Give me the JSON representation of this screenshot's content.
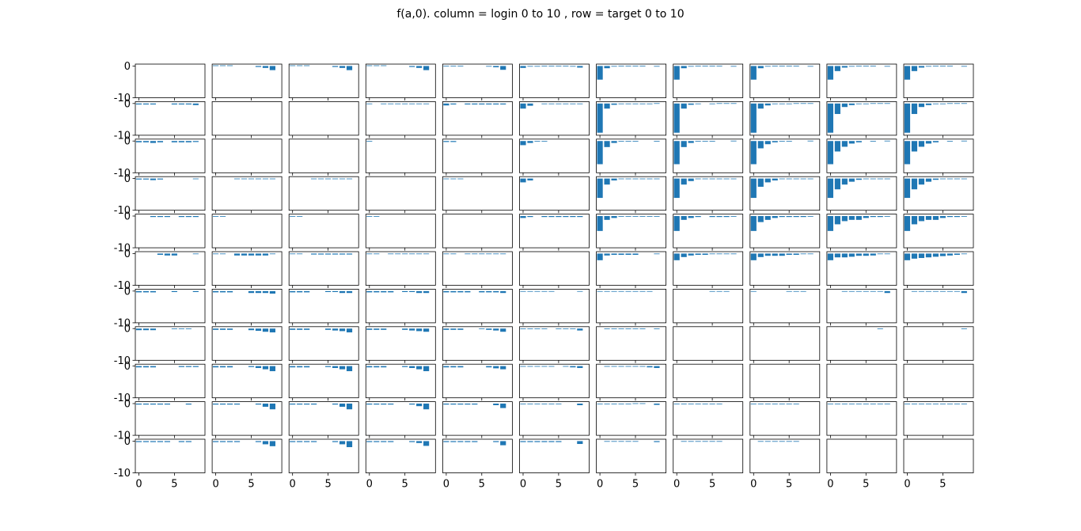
{
  "figure": {
    "title": "f(a,0). column = login 0 to 10 , row = target 0 to 10"
  },
  "chart_data": {
    "type": "bar",
    "layout": "11x11 grid of small bar subplots, shared axes",
    "columns_meaning": "login 0 to 10",
    "rows_meaning": "target 0 to 10",
    "bar_color": "#1f77b4",
    "x_categories": [
      0,
      1,
      2,
      3,
      4,
      5,
      6,
      7,
      8
    ],
    "x_tick_labels": [
      "0",
      "5"
    ],
    "x_ticks": [
      0,
      5
    ],
    "y_tick_labels": [
      "0",
      "-10"
    ],
    "y_ticks": [
      0,
      -10
    ],
    "ylim": [
      -10,
      0.6
    ],
    "grid": false,
    "subplots": [
      [
        [
          0,
          0,
          0,
          0,
          0,
          0,
          0,
          0,
          0
        ],
        [
          0.2,
          0.2,
          0.2,
          0,
          0,
          0,
          -0.3,
          -0.6,
          -1.3
        ],
        [
          0.2,
          0.2,
          0.2,
          0,
          0,
          0,
          -0.3,
          -0.6,
          -1.3
        ],
        [
          0.2,
          0.2,
          0.2,
          0,
          0,
          0,
          -0.3,
          -0.6,
          -1.3
        ],
        [
          0.1,
          0.1,
          0.1,
          0,
          0,
          0,
          -0.2,
          -0.4,
          -1.2
        ],
        [
          -0.6,
          -0.2,
          -0.1,
          0.1,
          0.1,
          0.1,
          0.1,
          -0.1,
          -0.5
        ],
        [
          -4.3,
          -0.7,
          -0.2,
          0.1,
          0.1,
          0.1,
          0.1,
          0,
          -0.2
        ],
        [
          -4.3,
          -0.7,
          -0.2,
          0.1,
          0.1,
          0.1,
          0.1,
          0,
          -0.2
        ],
        [
          -4.3,
          -0.7,
          -0.2,
          0.1,
          0.1,
          0.1,
          0.1,
          0,
          -0.2
        ],
        [
          -4.3,
          -1.6,
          -0.5,
          -0.1,
          0.1,
          0.1,
          0.1,
          0,
          -0.1
        ],
        [
          -4.3,
          -1.6,
          -0.5,
          -0.1,
          0.1,
          0.1,
          0.1,
          0,
          -0.1
        ]
      ],
      [
        [
          -0.3,
          -0.3,
          -0.3,
          0,
          0,
          -0.3,
          -0.3,
          -0.3,
          -0.5
        ],
        [
          0,
          0,
          0,
          0,
          0,
          0,
          0,
          0,
          0
        ],
        [
          0,
          0,
          0,
          0,
          0,
          0,
          0,
          0,
          0
        ],
        [
          -0.2,
          0,
          -0.2,
          -0.2,
          -0.2,
          -0.2,
          -0.2,
          -0.2,
          -0.2
        ],
        [
          -0.6,
          -0.3,
          0,
          -0.3,
          -0.3,
          -0.3,
          -0.3,
          -0.3,
          -0.3
        ],
        [
          -1.6,
          -0.7,
          0,
          -0.2,
          -0.2,
          -0.2,
          -0.2,
          -0.2,
          -0.2
        ],
        [
          -9.2,
          -1.6,
          -0.4,
          -0.2,
          -0.2,
          -0.2,
          -0.2,
          -0.2,
          0.1
        ],
        [
          -9.2,
          -1.6,
          -0.4,
          -0.2,
          0,
          -0.2,
          0.1,
          0.1,
          0.1
        ],
        [
          -9.2,
          -1.6,
          -0.6,
          -0.2,
          -0.2,
          -0.2,
          0.1,
          0.1,
          0.1
        ],
        [
          -9.2,
          -3.3,
          -1.1,
          -0.5,
          -0.2,
          -0.2,
          0.1,
          0.1,
          0.1
        ],
        [
          -9.2,
          -3.3,
          -1.1,
          -0.5,
          -0.2,
          -0.2,
          0.1,
          0.1,
          0.1
        ]
      ],
      [
        [
          -0.4,
          -0.4,
          -0.6,
          -0.4,
          0,
          -0.4,
          -0.4,
          -0.4,
          -0.3
        ],
        [
          0,
          0,
          0,
          0,
          0,
          0,
          0,
          0,
          0
        ],
        [
          0,
          0,
          0,
          0,
          0,
          0,
          0,
          0,
          0
        ],
        [
          -0.2,
          0,
          0,
          0,
          0,
          0,
          0,
          0,
          0
        ],
        [
          -0.3,
          -0.3,
          0,
          0,
          0,
          0,
          0,
          0,
          0
        ],
        [
          -1.3,
          -0.6,
          -0.2,
          -0.2,
          0,
          0,
          0,
          0,
          0
        ],
        [
          -7.3,
          -1.9,
          -0.6,
          -0.2,
          -0.2,
          -0.2,
          0,
          0,
          -0.2
        ],
        [
          -7.3,
          -1.9,
          -0.6,
          -0.2,
          -0.2,
          -0.2,
          0,
          0,
          0.1
        ],
        [
          -7.3,
          -2.3,
          -1,
          -0.4,
          -0.2,
          -0.2,
          0,
          0,
          0.1
        ],
        [
          -7.3,
          -3.3,
          -1.8,
          -0.8,
          -0.4,
          0,
          -0.2,
          0,
          0.1
        ],
        [
          -7.3,
          -3.3,
          -1.8,
          -0.8,
          -0.4,
          0,
          -0.2,
          0,
          0.1
        ]
      ],
      [
        [
          -0.3,
          -0.3,
          -0.5,
          -0.3,
          0,
          0,
          0,
          0,
          -0.2
        ],
        [
          0,
          0,
          0,
          -0.2,
          -0.2,
          -0.2,
          -0.2,
          -0.2,
          -0.2
        ],
        [
          0,
          0,
          0,
          -0.2,
          -0.2,
          -0.2,
          -0.2,
          -0.2,
          -0.2
        ],
        [
          0,
          0,
          0,
          0,
          0,
          0,
          0,
          0,
          0
        ],
        [
          -0.2,
          -0.2,
          -0.2,
          0,
          0,
          0,
          0,
          0,
          0
        ],
        [
          -1.2,
          -0.6,
          0,
          0,
          0,
          0,
          0,
          0,
          0
        ],
        [
          -6.1,
          -1.9,
          -0.6,
          -0.2,
          -0.2,
          -0.2,
          -0.2,
          -0.2,
          -0.2
        ],
        [
          -6.1,
          -1.9,
          -0.8,
          -0.2,
          -0.2,
          -0.2,
          -0.2,
          -0.2,
          -0.2
        ],
        [
          -6.1,
          -2.6,
          -1.2,
          -0.6,
          -0.2,
          -0.2,
          -0.2,
          -0.2,
          -0.2
        ],
        [
          -6.1,
          -3.4,
          -1.9,
          -1,
          -0.4,
          -0.2,
          -0.2,
          -0.2,
          -0.2
        ],
        [
          -6.1,
          -3.4,
          -1.9,
          -1,
          -0.4,
          -0.2,
          -0.2,
          -0.2,
          -0.2
        ]
      ],
      [
        [
          0,
          0,
          -0.3,
          -0.3,
          -0.3,
          0,
          -0.3,
          -0.3,
          -0.3
        ],
        [
          -0.2,
          -0.2,
          0,
          0,
          0,
          0,
          0,
          0,
          0
        ],
        [
          -0.2,
          -0.2,
          0,
          0,
          0,
          0,
          0,
          0,
          0
        ],
        [
          -0.2,
          -0.2,
          0,
          0,
          0,
          0,
          0,
          0,
          0
        ],
        [
          0,
          0,
          0,
          0,
          0,
          0,
          0,
          0,
          0
        ],
        [
          -0.6,
          -0.3,
          0,
          -0.3,
          -0.3,
          -0.3,
          -0.3,
          -0.3,
          -0.3
        ],
        [
          -4.7,
          -1.2,
          -0.6,
          -0.2,
          -0.2,
          -0.2,
          -0.2,
          -0.2,
          -0.2
        ],
        [
          -4.7,
          -1.2,
          -0.6,
          -0.3,
          0,
          -0.3,
          -0.3,
          -0.3,
          -0.2
        ],
        [
          -4.7,
          -1.9,
          -1.2,
          -0.6,
          -0.3,
          -0.3,
          -0.3,
          -0.3,
          -0.2
        ],
        [
          -4.7,
          -2.6,
          -1.6,
          -1.2,
          -1.2,
          -0.6,
          -0.3,
          -0.3,
          -0.2
        ],
        [
          -4.7,
          -2.6,
          -1.6,
          -1.2,
          -1.2,
          -0.6,
          -0.3,
          -0.3,
          -0.2
        ]
      ],
      [
        [
          0,
          0,
          0,
          -0.4,
          -0.6,
          -0.6,
          0,
          0,
          -0.2
        ],
        [
          -0.2,
          -0.2,
          0,
          -0.6,
          -0.6,
          -0.6,
          -0.6,
          -0.6,
          -0.2
        ],
        [
          -0.2,
          -0.2,
          0,
          -0.3,
          -0.3,
          -0.3,
          -0.3,
          -0.3,
          -0.3
        ],
        [
          -0.2,
          -0.2,
          0,
          -0.2,
          -0.2,
          -0.2,
          -0.2,
          -0.2,
          -0.2
        ],
        [
          -0.2,
          -0.2,
          0,
          -0.2,
          -0.2,
          -0.2,
          -0.2,
          -0.2,
          -0.2
        ],
        [
          0,
          0,
          0,
          0,
          0,
          0,
          0,
          0,
          0
        ],
        [
          -2.1,
          -0.6,
          -0.4,
          -0.4,
          -0.4,
          -0.4,
          0,
          0,
          -0.2
        ],
        [
          -2.1,
          -1.1,
          -0.6,
          -0.4,
          -0.4,
          -0.2,
          -0.2,
          -0.2,
          -0.2
        ],
        [
          -2.1,
          -1.1,
          -0.7,
          -0.7,
          -0.7,
          -0.4,
          -0.4,
          -0.2,
          -0.2
        ],
        [
          -2.1,
          -1.2,
          -1.2,
          -1,
          -0.7,
          -0.7,
          -0.6,
          -0.2,
          -0.2
        ],
        [
          -2.1,
          -1.6,
          -1.4,
          -1.2,
          -1.0,
          -0.8,
          -0.6,
          -0.4,
          -0.2
        ]
      ],
      [
        [
          -0.4,
          -0.4,
          -0.4,
          0,
          0,
          -0.3,
          0,
          0,
          -0.3
        ],
        [
          -0.4,
          -0.4,
          -0.4,
          0,
          0,
          -0.6,
          -0.6,
          -0.6,
          -0.8
        ],
        [
          -0.4,
          -0.4,
          -0.4,
          0,
          0,
          -0.3,
          -0.3,
          -0.6,
          -0.6
        ],
        [
          -0.4,
          -0.4,
          -0.4,
          -0.4,
          0,
          -0.3,
          -0.3,
          -0.6,
          -0.6
        ],
        [
          -0.4,
          -0.4,
          -0.4,
          -0.4,
          0,
          -0.4,
          -0.4,
          -0.4,
          -0.6
        ],
        [
          -0.2,
          -0.2,
          -0.2,
          -0.2,
          -0.2,
          0,
          0,
          0,
          -0.2
        ],
        [
          -0.2,
          -0.2,
          -0.2,
          -0.2,
          -0.2,
          -0.2,
          -0.2,
          -0.2,
          0
        ],
        [
          0,
          0,
          0,
          0,
          0,
          -0.2,
          -0.2,
          -0.2,
          0
        ],
        [
          -0.2,
          0,
          0,
          0,
          0,
          -0.2,
          -0.2,
          -0.2,
          0
        ],
        [
          0,
          0,
          -0.2,
          -0.2,
          -0.2,
          -0.2,
          -0.2,
          -0.2,
          -0.6
        ],
        [
          0,
          -0.2,
          -0.2,
          -0.2,
          -0.2,
          -0.2,
          -0.2,
          -0.2,
          -0.6
        ]
      ],
      [
        [
          -0.5,
          -0.5,
          -0.5,
          0,
          0,
          -0.2,
          -0.2,
          -0.2,
          0
        ],
        [
          -0.4,
          -0.4,
          -0.4,
          0,
          0,
          -0.5,
          -0.7,
          -1,
          -1.2
        ],
        [
          -0.4,
          -0.4,
          -0.4,
          0,
          0,
          -0.4,
          -0.6,
          -0.8,
          -1.2
        ],
        [
          -0.4,
          -0.4,
          -0.4,
          0,
          0,
          -0.4,
          -0.6,
          -0.8,
          -1
        ],
        [
          -0.4,
          -0.4,
          -0.4,
          0,
          0,
          -0.2,
          -0.4,
          -0.6,
          -1
        ],
        [
          -0.2,
          -0.2,
          -0.2,
          -0.2,
          0,
          -0.2,
          -0.2,
          -0.2,
          -0.6
        ],
        [
          0,
          -0.2,
          -0.2,
          -0.2,
          -0.2,
          -0.2,
          -0.2,
          0,
          -0.2
        ],
        [
          0,
          0,
          0,
          0,
          0,
          0,
          0,
          0,
          0
        ],
        [
          0,
          0,
          0,
          0,
          0,
          0,
          0,
          0,
          0
        ],
        [
          0,
          0,
          0,
          0,
          0,
          0,
          0,
          -0.2,
          0
        ],
        [
          0,
          0,
          0,
          0,
          0,
          0,
          0,
          0,
          -0.2
        ]
      ],
      [
        [
          -0.4,
          -0.4,
          -0.4,
          0,
          0,
          0,
          -0.3,
          -0.3,
          -0.3
        ],
        [
          -0.4,
          -0.4,
          -0.4,
          0,
          0,
          -0.3,
          -0.6,
          -1,
          -1.6
        ],
        [
          -0.4,
          -0.4,
          -0.4,
          0,
          0,
          -0.3,
          -0.6,
          -1,
          -1.6
        ],
        [
          -0.4,
          -0.4,
          -0.4,
          0,
          0,
          -0.3,
          -0.6,
          -1,
          -1.6
        ],
        [
          -0.4,
          -0.4,
          -0.4,
          0,
          0,
          0,
          -0.4,
          -0.7,
          -1
        ],
        [
          -0.2,
          -0.2,
          -0.2,
          -0.2,
          -0.2,
          0,
          -0.2,
          -0.4,
          -0.6
        ],
        [
          0,
          -0.2,
          -0.2,
          -0.2,
          -0.2,
          -0.2,
          -0.2,
          -0.4,
          -0.6
        ],
        [
          0,
          0,
          0,
          0,
          0,
          0,
          0,
          0,
          0
        ],
        [
          0,
          0,
          0,
          0,
          0,
          0,
          0,
          0,
          0
        ],
        [
          0,
          0,
          0,
          0,
          0,
          0,
          0,
          0,
          0
        ],
        [
          0,
          0,
          0,
          0,
          0,
          0,
          0,
          0,
          0
        ]
      ],
      [
        [
          -0.3,
          -0.3,
          -0.3,
          -0.3,
          -0.3,
          0,
          0,
          -0.3,
          0
        ],
        [
          -0.3,
          -0.3,
          -0.3,
          -0.3,
          0,
          0,
          -0.3,
          -1,
          -1.8
        ],
        [
          -0.3,
          -0.3,
          -0.3,
          -0.3,
          0,
          0,
          -0.3,
          -1,
          -1.8
        ],
        [
          -0.3,
          -0.3,
          -0.3,
          -0.3,
          0,
          0,
          -0.3,
          -0.8,
          -1.8
        ],
        [
          -0.3,
          -0.3,
          -0.3,
          -0.3,
          -0.3,
          0,
          0,
          -0.5,
          -1.4
        ],
        [
          -0.2,
          -0.2,
          -0.2,
          -0.2,
          -0.2,
          -0.2,
          0,
          0,
          -0.5
        ],
        [
          -0.2,
          -0.2,
          -0.2,
          -0.2,
          -0.2,
          0.1,
          0.1,
          0,
          -0.4
        ],
        [
          -0.2,
          -0.2,
          -0.2,
          -0.2,
          -0.2,
          -0.2,
          -0.2,
          0,
          0
        ],
        [
          -0.2,
          -0.2,
          -0.2,
          -0.2,
          -0.2,
          -0.2,
          -0.2,
          0,
          0
        ],
        [
          -0.2,
          -0.2,
          -0.2,
          -0.2,
          -0.2,
          -0.2,
          -0.2,
          -0.2,
          -0.2
        ],
        [
          -0.2,
          -0.2,
          -0.2,
          -0.2,
          -0.2,
          -0.2,
          -0.2,
          -0.2,
          -0.2
        ]
      ],
      [
        [
          -0.3,
          -0.3,
          -0.3,
          -0.3,
          -0.3,
          0,
          -0.3,
          -0.3,
          0
        ],
        [
          -0.3,
          -0.3,
          -0.3,
          -0.3,
          0,
          0,
          -0.3,
          -1,
          -1.6
        ],
        [
          -0.3,
          -0.3,
          -0.3,
          -0.3,
          0,
          0,
          -0.3,
          -1,
          -1.9
        ],
        [
          -0.3,
          -0.3,
          -0.3,
          -0.3,
          0,
          0,
          -0.3,
          -0.6,
          -1.5
        ],
        [
          -0.3,
          -0.3,
          -0.3,
          -0.3,
          -0.3,
          0,
          0,
          -0.3,
          -1.3
        ],
        [
          -0.3,
          -0.3,
          -0.3,
          -0.3,
          -0.3,
          -0.3,
          0,
          0,
          -0.9
        ],
        [
          0,
          -0.2,
          -0.2,
          -0.2,
          -0.2,
          -0.2,
          0,
          0,
          -0.3
        ],
        [
          0,
          -0.2,
          -0.2,
          -0.2,
          -0.2,
          -0.2,
          -0.2,
          0,
          0
        ],
        [
          0,
          -0.2,
          -0.2,
          -0.2,
          -0.2,
          -0.2,
          -0.2,
          0,
          0
        ],
        [
          0,
          0,
          0,
          0,
          0,
          0,
          0,
          0,
          0
        ],
        [
          0,
          0,
          0,
          0,
          0,
          0,
          0,
          0,
          0
        ]
      ]
    ]
  }
}
